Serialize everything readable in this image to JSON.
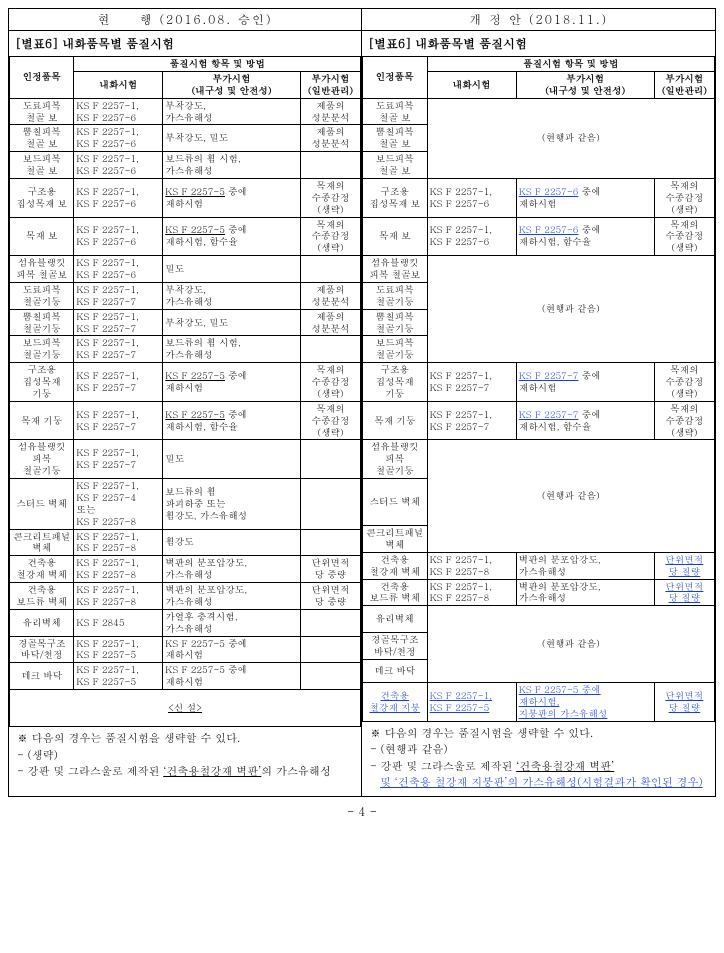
{
  "left": {
    "header": "현　　행 (2016.08. 승인)",
    "subtitle": "[별표6] 내화품목별 품질시험",
    "th": {
      "item": "인정품목",
      "group": "품질시험 항목 및 방법",
      "fire": "내화시험",
      "add1": "부가시험\n(내구성 및 안전성)",
      "add2": "부가시험\n(일반관리)"
    },
    "rows": [
      [
        "도료피복\n철골 보",
        "KS F 2257-1,\nKS F 2257-6",
        "부착강도,\n가스유해성",
        "제품의\n성분분석"
      ],
      [
        "뿜칠피복\n철골 보",
        "KS F 2257-1,\nKS F 2257-6",
        "부착강도, 밀도",
        "제품의\n성분분석"
      ],
      [
        "보드피복\n철골 보",
        "KS F 2257-1,\nKS F 2257-6",
        "보드류의 휨 시험,\n가스유해성",
        ""
      ]
    ],
    "rowA": [
      "구조용\n집성목재 보",
      "KS F 2257-1,\nKS F 2257-6",
      "KS F 2257-5",
      "중에\n재하시험",
      "목재의\n수종감정\n(생략)"
    ],
    "rowB": [
      "목재 보",
      "KS F 2257-1,\nKS F 2257-6",
      "KS F 2257-5",
      "중에\n재하시험, 함수율",
      "목재의\n수종감정\n(생략)"
    ],
    "rows2": [
      [
        "섬유블랭킷\n피복 철골보",
        "KS F 2257-1,\nKS F 2257-6",
        "밀도",
        ""
      ],
      [
        "도료피복\n철골기둥",
        "KS F 2257-1,\nKS F 2257-7",
        "부착강도,\n가스유해성",
        "제품의\n성분분석"
      ],
      [
        "뿜칠피복\n철골기둥",
        "KS F 2257-1,\nKS F 2257-7",
        "부착강도, 밀도",
        "제품의\n성분분석"
      ],
      [
        "보드피복\n철골기둥",
        "KS F 2257-1,\nKS F 2257-7",
        "보드류의 휨 시험,\n가스유해성",
        ""
      ]
    ],
    "rowC": [
      "구조용\n집성목재\n기둥",
      "KS F 2257-1,\nKS F 2257-7",
      "KS F 2257-5",
      "중에\n재하시험",
      "목재의\n수종감정\n(생략)"
    ],
    "rowD": [
      "목재 기둥",
      "KS F 2257-1,\nKS F 2257-7",
      "KS F 2257-5",
      "중에\n재하시험, 함수율",
      "목재의\n수종감정\n(생략)"
    ],
    "rows3": [
      [
        "섬유블랭킷\n피복\n철골기둥",
        "KS F 2257-1,\nKS F 2257-7",
        "밀도",
        ""
      ],
      [
        "스터드 벽체",
        "KS F 2257-1,\nKS F 2257-4\n또는\nKS F 2257-8",
        "보드류의 휨\n파괴하중 또는\n휨강도, 가스유해성",
        ""
      ],
      [
        "콘크리트패널\n벽체",
        "KS F 2257-1,\nKS F 2257-8",
        "휨강도",
        ""
      ],
      [
        "건축용\n철강재 벽체",
        "KS F 2257-1,\nKS F 2257-8",
        "벽판의 분포압강도,\n가스유해성",
        "단위면적\n당 중량"
      ],
      [
        "건축용\n보드류 벽체",
        "KS F 2257-1,\nKS F 2257-8",
        "벽판의 분포압강도,\n가스유해성",
        "단위면적\n당 중량"
      ],
      [
        "유리벽체",
        "KS F 2845",
        "가열후 충격시험,\n가스유해성",
        ""
      ],
      [
        "경골목구조\n바닥/천정",
        "KS F 2257-1,\nKS F 2257-5",
        "KS F 2257-5 중에\n재하시험",
        ""
      ],
      [
        "데크 바닥",
        "KS F 2257-1,\nKS F 2257-5",
        "KS F 2257-5 중에\n재하시험",
        ""
      ]
    ],
    "newrow": "<신 설>",
    "notes": [
      "※ 다음의 경우는 품질시험을 생략할 수 있다.",
      "- (생략)",
      "- 강판 및 그라스울로 제작된 ‘건축용철강재 벽판’의 가스유해성"
    ]
  },
  "right": {
    "header": "개 정 안 (2018.11.)",
    "subtitle": "[별표6] 내화품목별 품질시험",
    "th": {
      "item": "인정품목",
      "group": "품질시험 항목 및 방법",
      "fire": "내화시험",
      "add1": "부가시험\n(내구성 및 안전성)",
      "add2": "부가시험\n(일반관리)"
    },
    "same": "(현행과 같음)",
    "g1": [
      "도료피복\n철골 보",
      "뿜칠피복\n철골 보",
      "보드피복\n철골 보"
    ],
    "rA": [
      "구조용\n집성목재 보",
      "KS F 2257-1,\nKS F 2257-6",
      "KS F 2257-6",
      "중에\n재하시험",
      "목재의\n수종감정\n(생략)"
    ],
    "rB": [
      "목재 보",
      "KS F 2257-1,\nKS F 2257-6",
      "KS F 2257-6",
      "중에\n재하시험, 함수율",
      "목재의\n수종감정\n(생략)"
    ],
    "g2": [
      "섬유블랭킷\n피복 철골보",
      "도료피복\n철골기둥",
      "뿜칠피복\n철골기둥",
      "보드피복\n철골기둥"
    ],
    "rC": [
      "구조용\n집성목재\n기둥",
      "KS F 2257-1,\nKS F 2257-7",
      "KS F 2257-7",
      "중에\n재하시험",
      "목재의\n수종감정\n(생략)"
    ],
    "rD": [
      "목재 기둥",
      "KS F 2257-1,\nKS F 2257-7",
      "KS F 2257-7",
      "중에\n재하시험, 함수율",
      "목재의\n수종감정\n(생략)"
    ],
    "g3": [
      "섬유블랭킷\n피복\n철골기둥",
      "스터드 벽체",
      "콘크리트패널\n벽체"
    ],
    "wall1": [
      "건축용\n철강재 벽체",
      "KS F 2257-1,\nKS F 2257-8",
      "벽판의 분포압강도,\n가스유해성",
      "단위면적\n당 질량"
    ],
    "wall2": [
      "건축용\n보드류 벽체",
      "KS F 2257-1,\nKS F 2257-8",
      "벽판의 분포압강도,\n가스유해성",
      "단위면적\n당 질량"
    ],
    "g4": [
      "유리벽체",
      "경골목구조\n바닥/천정",
      "데크 바닥"
    ],
    "newrow": [
      "건축용\n철강재 지붕",
      "KS F 2257-1,\nKS F 2257-5",
      "KS F 2257-5 중에\n재하시험,\n지붕판의 가스유해성",
      "단위면적\n당 질량"
    ],
    "notes": [
      "※ 다음의 경우는 품질시험을 생략할 수 있다.",
      "- (현행과 같음)",
      "- 강판 및 그라스울로 제작된 ‘건축용철강재 벽판’",
      "및 ‘건축용 철강재 지붕판’의 가스유해성(시험결과가 확인된 경우)"
    ]
  },
  "page": "- 4 -"
}
